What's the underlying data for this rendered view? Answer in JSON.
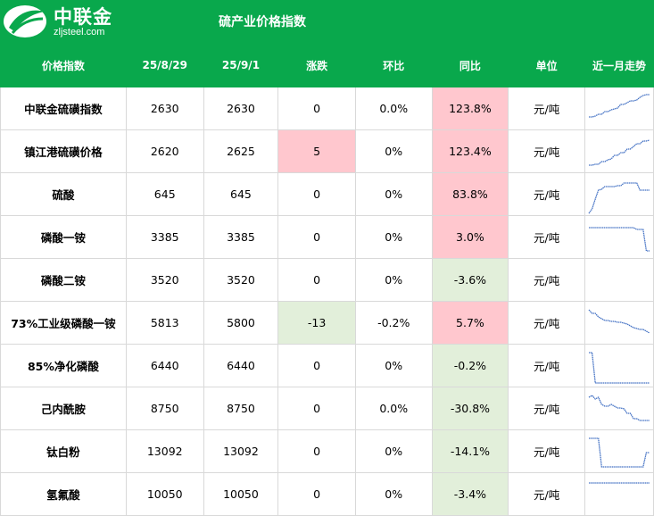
{
  "header": {
    "logo_cn": "中联金",
    "logo_en": "zljsteel.com",
    "title": "硫产业价格指数"
  },
  "table": {
    "columns": [
      "价格指数",
      "25/8/29",
      "25/9/1",
      "涨跌",
      "环比",
      "同比",
      "单位",
      "近一月走势"
    ],
    "rows": [
      {
        "name": "中联金硫磺指数",
        "v1": "2630",
        "v2": "2630",
        "change": "0",
        "mom": "0.0%",
        "yoy": "123.8%",
        "unit": "元/吨",
        "change_hl": "",
        "yoy_hl": "pink",
        "trend": [
          28,
          28,
          27,
          25,
          25,
          22,
          22,
          20,
          19,
          18,
          14,
          14,
          12,
          10,
          10,
          9,
          6,
          4,
          3,
          3
        ]
      },
      {
        "name": "镇江港硫磺价格",
        "v1": "2620",
        "v2": "2625",
        "change": "5",
        "mom": "0%",
        "yoy": "123.4%",
        "unit": "元/吨",
        "change_hl": "pink",
        "yoy_hl": "pink",
        "trend": [
          34,
          34,
          33,
          33,
          30,
          30,
          28,
          27,
          23,
          23,
          20,
          20,
          16,
          16,
          13,
          10,
          10,
          7,
          7,
          6
        ]
      },
      {
        "name": "硫酸",
        "v1": "645",
        "v2": "645",
        "change": "0",
        "mom": "0%",
        "yoy": "83.8%",
        "unit": "元/吨",
        "change_hl": "",
        "yoy_hl": "pink",
        "trend": [
          40,
          35,
          24,
          14,
          13,
          10,
          10,
          10,
          10,
          9,
          9,
          6,
          6,
          6,
          6,
          6,
          14,
          14,
          14,
          14
        ]
      },
      {
        "name": "磷酸一铵",
        "v1": "3385",
        "v2": "3385",
        "change": "0",
        "mom": "0%",
        "yoy": "3.0%",
        "unit": "元/吨",
        "change_hl": "",
        "yoy_hl": "pink",
        "trend": [
          8,
          8,
          8,
          8,
          8,
          8,
          8,
          8,
          8,
          8,
          8,
          8,
          8,
          8,
          8,
          10,
          10,
          10,
          34,
          34
        ]
      },
      {
        "name": "磷酸二铵",
        "v1": "3520",
        "v2": "3520",
        "change": "0",
        "mom": "0%",
        "yoy": "-3.6%",
        "unit": "元/吨",
        "change_hl": "",
        "yoy_hl": "green",
        "trend": []
      },
      {
        "name": "73%工业级磷酸一铵",
        "v1": "5813",
        "v2": "5800",
        "change": "-13",
        "mom": "-0.2%",
        "yoy": "5.7%",
        "unit": "元/吨",
        "change_hl": "green",
        "yoy_hl": "pink",
        "trend": [
          4,
          8,
          8,
          12,
          14,
          16,
          16,
          17,
          17,
          18,
          18,
          19,
          20,
          22,
          24,
          25,
          26,
          26,
          28,
          30
        ]
      },
      {
        "name": "85%净化磷酸",
        "v1": "6440",
        "v2": "6440",
        "change": "0",
        "mom": "0%",
        "yoy": "-0.2%",
        "unit": "元/吨",
        "change_hl": "",
        "yoy_hl": "green",
        "trend": [
          4,
          4,
          38,
          38,
          38,
          38,
          38,
          38,
          38,
          38,
          38,
          38,
          38,
          38,
          38,
          38,
          38,
          38,
          38,
          38
        ]
      },
      {
        "name": "己内酰胺",
        "v1": "8750",
        "v2": "8750",
        "change": "0",
        "mom": "0.0%",
        "yoy": "-30.8%",
        "unit": "元/吨",
        "change_hl": "",
        "yoy_hl": "green",
        "trend": [
          6,
          4,
          8,
          6,
          14,
          16,
          16,
          14,
          16,
          18,
          18,
          19,
          24,
          24,
          30,
          30,
          32,
          32,
          32,
          32
        ]
      },
      {
        "name": "钛白粉",
        "v1": "13092",
        "v2": "13092",
        "change": "0",
        "mom": "0%",
        "yoy": "-14.1%",
        "unit": "元/吨",
        "change_hl": "",
        "yoy_hl": "green",
        "trend": [
          4,
          4,
          4,
          4,
          36,
          36,
          36,
          36,
          36,
          36,
          36,
          36,
          36,
          36,
          36,
          36,
          36,
          36,
          20,
          20
        ]
      },
      {
        "name": "氢氟酸",
        "v1": "10050",
        "v2": "10050",
        "change": "0",
        "mom": "0%",
        "yoy": "-3.4%",
        "unit": "元/吨",
        "change_hl": "",
        "yoy_hl": "green",
        "trend": [
          6,
          6,
          6,
          6,
          6,
          6,
          6,
          6,
          6,
          6,
          6,
          6,
          6,
          6,
          6,
          6,
          6,
          6,
          6,
          6
        ]
      }
    ]
  },
  "colors": {
    "brand": "#09a84c",
    "pink": "#ffc7ce",
    "green": "#e2efda",
    "spark": "#4472c4"
  }
}
